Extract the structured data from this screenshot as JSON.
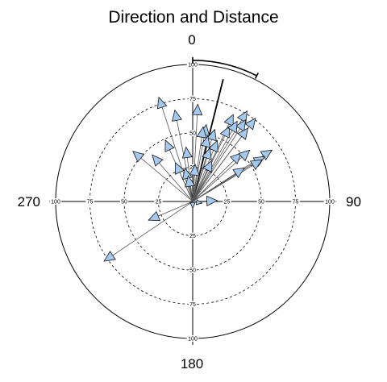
{
  "chart_data": {
    "type": "scatter",
    "title": "Direction and Distance",
    "coordinate_system": "polar",
    "angle_unit": "degrees",
    "zero_direction": "top",
    "rotation": "clockwise",
    "direction_labels": {
      "north": "0",
      "east": "90",
      "south": "180",
      "west": "270"
    },
    "radial_range": [
      0,
      100
    ],
    "radial_ticks": [
      "25",
      "50",
      "75",
      "100"
    ],
    "grid": true,
    "markers": "arrow",
    "marker_color": "#a4c8ee",
    "line_color": "#555555",
    "mean_arc": {
      "start_deg": 0,
      "end_deg": 27
    },
    "mean_vector": {
      "direction_deg": 14,
      "length": 92
    },
    "points": [
      {
        "direction_deg": 342,
        "distance": 80
      },
      {
        "direction_deg": 349,
        "distance": 68
      },
      {
        "direction_deg": 3,
        "distance": 71
      },
      {
        "direction_deg": 10,
        "distance": 57
      },
      {
        "direction_deg": 17,
        "distance": 55
      },
      {
        "direction_deg": 25,
        "distance": 70
      },
      {
        "direction_deg": 31,
        "distance": 77
      },
      {
        "direction_deg": 37,
        "distance": 76
      },
      {
        "direction_deg": 33,
        "distance": 71
      },
      {
        "direction_deg": 26,
        "distance": 61
      },
      {
        "direction_deg": 22,
        "distance": 48
      },
      {
        "direction_deg": 18,
        "distance": 41
      },
      {
        "direction_deg": 25,
        "distance": 33
      },
      {
        "direction_deg": 45,
        "distance": 50
      },
      {
        "direction_deg": 57,
        "distance": 69
      },
      {
        "direction_deg": 58,
        "distance": 62
      },
      {
        "direction_deg": 57,
        "distance": 45
      },
      {
        "direction_deg": 59,
        "distance": 59
      },
      {
        "direction_deg": 48,
        "distance": 56
      },
      {
        "direction_deg": 29,
        "distance": 67
      },
      {
        "direction_deg": 37,
        "distance": 67
      },
      {
        "direction_deg": 13,
        "distance": 49
      },
      {
        "direction_deg": 8,
        "distance": 55
      },
      {
        "direction_deg": 4,
        "distance": 27
      },
      {
        "direction_deg": 353,
        "distance": 40
      },
      {
        "direction_deg": 336,
        "distance": 49
      },
      {
        "direction_deg": 319,
        "distance": 45
      },
      {
        "direction_deg": 310,
        "distance": 57
      },
      {
        "direction_deg": 336,
        "distance": 31
      },
      {
        "direction_deg": 347,
        "distance": 25
      },
      {
        "direction_deg": 350,
        "distance": 19
      },
      {
        "direction_deg": 247,
        "distance": 35
      },
      {
        "direction_deg": 236,
        "distance": 78
      },
      {
        "direction_deg": 88,
        "distance": 18
      },
      {
        "direction_deg": 180,
        "distance": 5
      },
      {
        "direction_deg": 100,
        "distance": 7
      }
    ]
  }
}
